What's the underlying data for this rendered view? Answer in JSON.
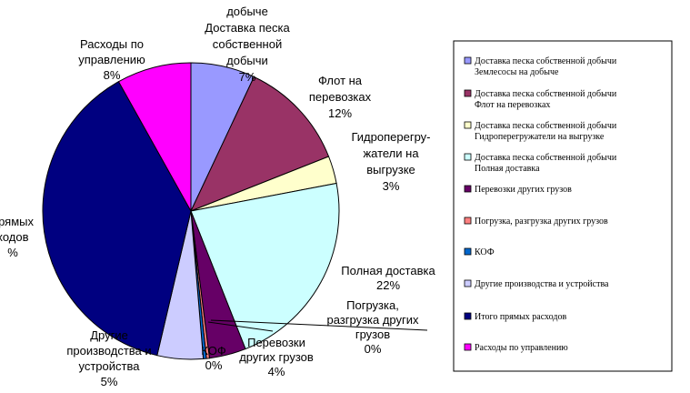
{
  "chart_data": {
    "type": "pie",
    "slices": [
      {
        "name": "Доставка песка собственной добычи Землесосы на добыче",
        "value": 7,
        "color": "#9999FF",
        "label": [
          "добыче",
          "Доставка песка",
          "собственной",
          "добычи",
          "7%"
        ]
      },
      {
        "name": "Доставка песка собственной добычи Флот на перевозках",
        "value": 12,
        "color": "#993366",
        "label": [
          "Флот на",
          "перевозках",
          "12%"
        ]
      },
      {
        "name": "Доставка песка собственной добычи Гидроперегружатели на выгрузке",
        "value": 3,
        "color": "#FFFFCC",
        "label": [
          "Гидроперегру-",
          "жатели на",
          "выгрузке",
          "3%"
        ]
      },
      {
        "name": "Доставка песка собственной добычи Полная доставка",
        "value": 22,
        "color": "#CCFFFF",
        "label": [
          "Полная доставка",
          "22%"
        ]
      },
      {
        "name": "Перевозки других грузов",
        "value": 4,
        "color": "#660066",
        "label": [
          "Перевозки",
          "других грузов",
          "4%"
        ]
      },
      {
        "name": "Погрузка, разгрузка других грузов",
        "value": 0,
        "color": "#FF8080",
        "label": [
          "Погрузка,",
          "разгрузка других",
          "грузов",
          "0%"
        ]
      },
      {
        "name": "КОФ",
        "value": 0,
        "color": "#0066CC",
        "label": [
          "КОФ",
          "0%"
        ]
      },
      {
        "name": "Другие производства и устройства",
        "value": 5,
        "color": "#CCCCFF",
        "label": [
          "Другие",
          "производства и",
          "устройства",
          "5%"
        ]
      },
      {
        "name": "Итого прямых расходов",
        "value": 39,
        "color": "#000080",
        "label": [
          "прямых",
          "ходов",
          "%"
        ]
      },
      {
        "name": "Расходы по управлению",
        "value": 8,
        "color": "#FF00FF",
        "label": [
          "Расходы по",
          "управлению",
          "8%"
        ]
      }
    ],
    "legend": {
      "placement": "right",
      "entries": [
        [
          "Доставка песка собственной добычи",
          "Землесосы на добыче"
        ],
        [
          "Доставка песка собственной добычи",
          "Флот на перевозках"
        ],
        [
          "Доставка песка собственной добычи",
          "Гидроперегружатели на выгрузке"
        ],
        [
          "Доставка песка собственной добычи",
          "Полная доставка"
        ],
        [
          "Перевозки других грузов"
        ],
        [
          "Погрузка, разгрузка других грузов"
        ],
        [
          "КОФ"
        ],
        [
          "Другие производства и устройства"
        ],
        [
          "Итого прямых расходов"
        ],
        [
          "Расходы по управлению"
        ]
      ]
    }
  }
}
